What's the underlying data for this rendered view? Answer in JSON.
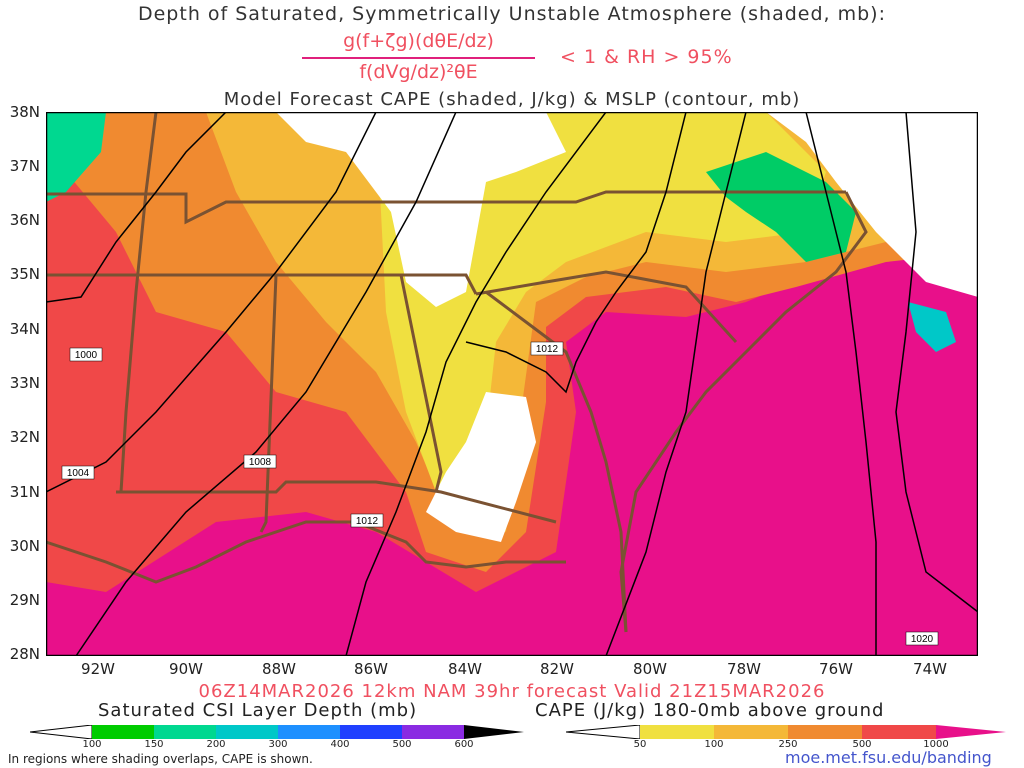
{
  "title": {
    "line1": "Depth of Saturated, Symmetrically Unstable Atmosphere (shaded, mb):",
    "fraction_numerator": "g(f+ζg)(dθE/dz)",
    "fraction_denominator": "f(dVg/dz)²θE",
    "condition": "< 1 & RH > 95%",
    "line3": "Model Forecast CAPE (shaded, J/kg) & MSLP (contour, mb)"
  },
  "axes": {
    "lat_labels": [
      "38N",
      "37N",
      "36N",
      "35N",
      "34N",
      "33N",
      "32N",
      "31N",
      "30N",
      "29N",
      "28N"
    ],
    "lon_labels": [
      "92W",
      "90W",
      "88W",
      "86W",
      "84W",
      "82W",
      "80W",
      "78W",
      "76W",
      "74W"
    ]
  },
  "isobar_labels": [
    "1000",
    "1004",
    "1008",
    "1012",
    "1012",
    "1020"
  ],
  "valid_line": "06Z14MAR2026 12km NAM 39hr forecast Valid 21Z15MAR2026",
  "legend": {
    "csi_title": "Saturated CSI Layer Depth (mb)",
    "csi_ticks": [
      "100",
      "150",
      "200",
      "300",
      "400",
      "500",
      "600"
    ],
    "csi_colors": [
      "#00cc00",
      "#00d890",
      "#00c8c8",
      "#1e90ff",
      "#2040ff",
      "#8a2be2",
      "#000000"
    ],
    "cape_title": "CAPE (J/kg) 180-0mb above ground",
    "cape_ticks": [
      "50",
      "100",
      "250",
      "500",
      "1000"
    ],
    "cape_colors": [
      "#f0e040",
      "#f4b838",
      "#f08a30",
      "#f04848",
      "#e8108a"
    ]
  },
  "footer": {
    "note": "In regions where shading overlaps, CAPE is shown.",
    "url": "moe.met.fsu.edu/banding"
  }
}
